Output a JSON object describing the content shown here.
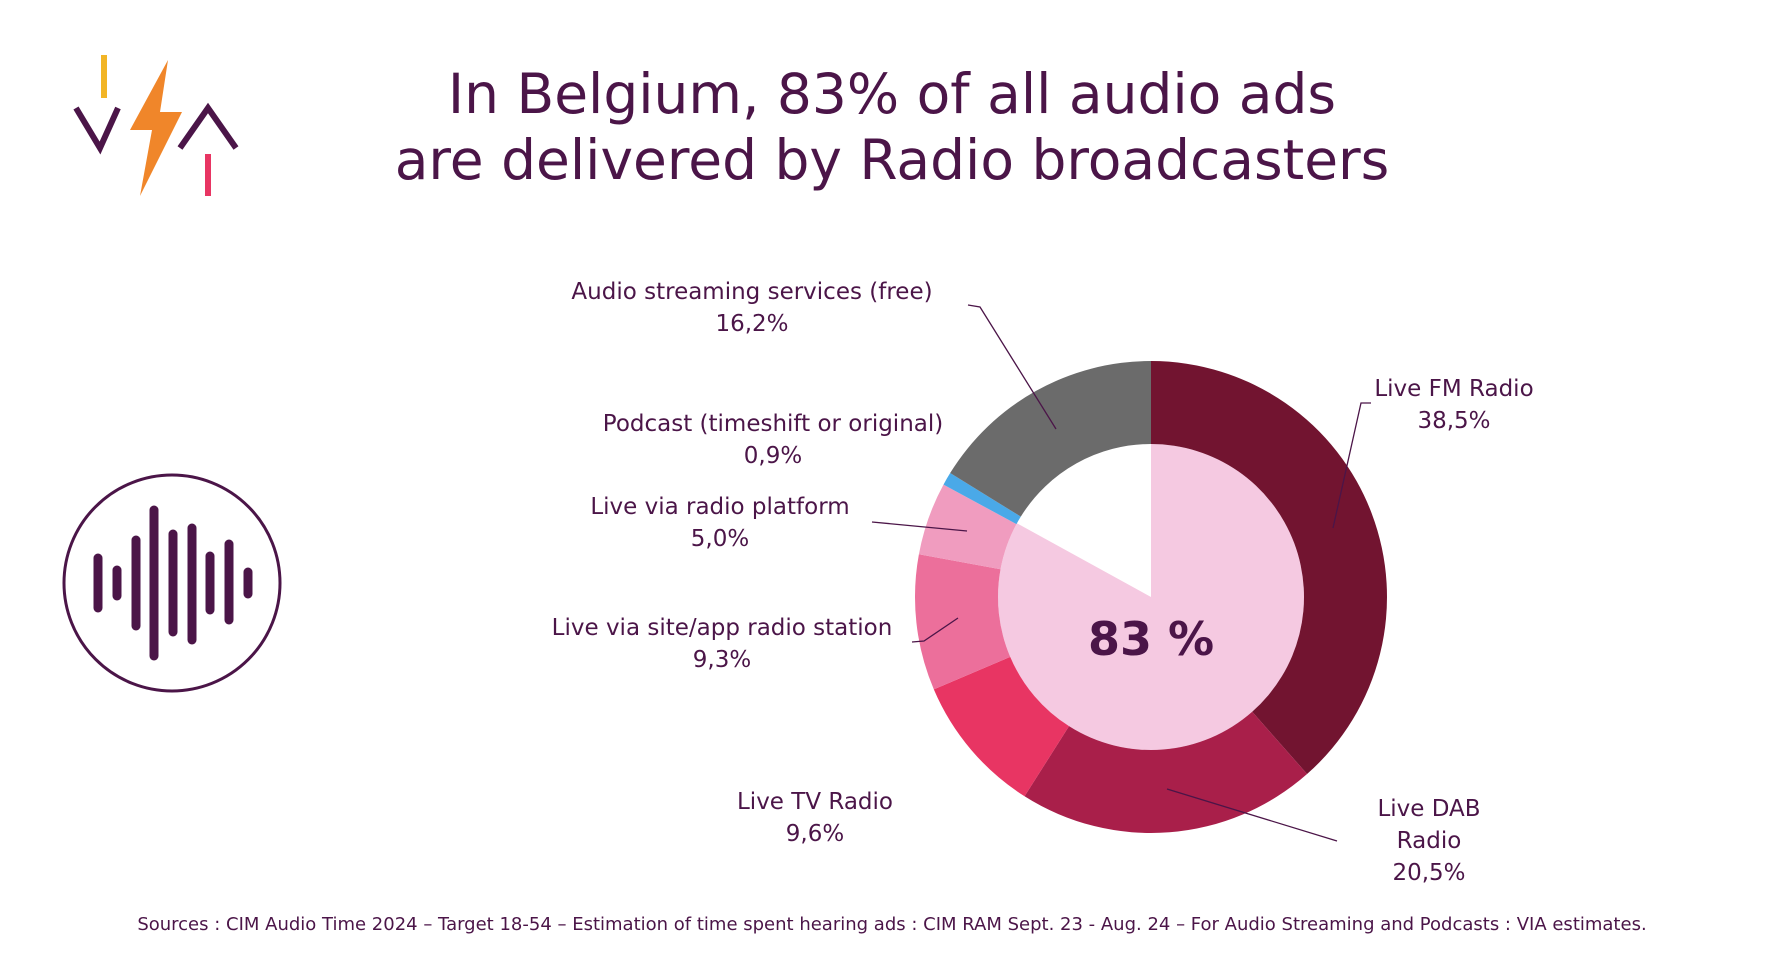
{
  "title_lines": [
    "In Belgium, 83% of all audio ads",
    "are delivered by Radio broadcasters"
  ],
  "chart_data": {
    "type": "donut",
    "categories": [
      "Live FM Radio",
      "Live DAB Radio",
      "Live TV Radio",
      "Live via site/app radio station",
      "Live via radio platform",
      "Podcast (timeshift or original)",
      "Audio streaming services (free)"
    ],
    "values": [
      38.5,
      20.5,
      9.6,
      9.3,
      5.0,
      0.9,
      16.2
    ],
    "value_labels": [
      "38,5%",
      "20,5%",
      "9,6%",
      "9,3%",
      "5,0%",
      "0,9%",
      "16,2%"
    ],
    "colors": [
      "#721430",
      "#a91f4a",
      "#e83563",
      "#ec6f9b",
      "#f09cbf",
      "#4aa9e8",
      "#6b6b6b"
    ],
    "inner_value": 83,
    "inner_label": "83 %",
    "inner_color": "#f5c9e1"
  },
  "source": "Sources : CIM Audio Time 2024 – Target 18-54 – Estimation of time spent hearing ads : CIM RAM Sept. 23 - Aug. 24 – For Audio Streaming and Podcasts : VIA estimates."
}
